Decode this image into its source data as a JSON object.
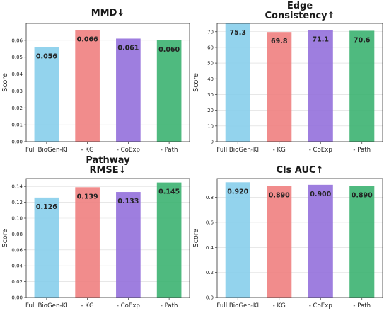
{
  "chart_data": [
    {
      "type": "bar",
      "title_lines": [
        "MMD↓"
      ],
      "ylabel": "Score",
      "categories": [
        "Full BioGen-KI",
        "- KG",
        "- CoExp",
        "- Path"
      ],
      "values": [
        0.056,
        0.066,
        0.061,
        0.06
      ],
      "value_labels": [
        "0.056",
        "0.066",
        "0.061",
        "0.060"
      ],
      "colors": [
        "#87ceeb",
        "#f08080",
        "#9370db",
        "#3cb371"
      ],
      "ylim": [
        0,
        0.07
      ],
      "yticks": [
        "0.00",
        "0.01",
        "0.02",
        "0.03",
        "0.04",
        "0.05",
        "0.06"
      ],
      "ytick_values": [
        0,
        0.01,
        0.02,
        0.03,
        0.04,
        0.05,
        0.06
      ],
      "grid": true
    },
    {
      "type": "bar",
      "title_lines": [
        "Edge",
        "Consistency↑"
      ],
      "ylabel": "Score",
      "categories": [
        "Full BioGen-KI",
        "- KG",
        "- CoExp",
        "- Path"
      ],
      "values": [
        75.3,
        69.8,
        71.1,
        70.6
      ],
      "value_labels": [
        "75.3",
        "69.8",
        "71.1",
        "70.6"
      ],
      "colors": [
        "#87ceeb",
        "#f08080",
        "#9370db",
        "#3cb371"
      ],
      "ylim": [
        0,
        75.3
      ],
      "yticks": [
        "0",
        "10",
        "20",
        "30",
        "40",
        "50",
        "60",
        "70"
      ],
      "ytick_values": [
        0,
        10,
        20,
        30,
        40,
        50,
        60,
        70
      ],
      "grid": true
    },
    {
      "type": "bar",
      "title_lines": [
        "Pathway",
        "RMSE↓"
      ],
      "ylabel": "Score",
      "categories": [
        "Full BioGen-KI",
        "- KG",
        "- CoExp",
        "- Path"
      ],
      "values": [
        0.126,
        0.139,
        0.133,
        0.145
      ],
      "value_labels": [
        "0.126",
        "0.139",
        "0.133",
        "0.145"
      ],
      "colors": [
        "#87ceeb",
        "#f08080",
        "#9370db",
        "#3cb371"
      ],
      "ylim": [
        0,
        0.15
      ],
      "yticks": [
        "0.00",
        "0.02",
        "0.04",
        "0.06",
        "0.08",
        "0.10",
        "0.12",
        "0.14"
      ],
      "ytick_values": [
        0,
        0.02,
        0.04,
        0.06,
        0.08,
        0.1,
        0.12,
        0.14
      ],
      "grid": true
    },
    {
      "type": "bar",
      "title_lines": [
        "Cls AUC↑"
      ],
      "ylabel": "Score",
      "categories": [
        "Full BioGen-KI",
        "- KG",
        "- CoExp",
        "- Path"
      ],
      "values": [
        0.92,
        0.89,
        0.9,
        0.89
      ],
      "value_labels": [
        "0.920",
        "0.890",
        "0.900",
        "0.890"
      ],
      "colors": [
        "#87ceeb",
        "#f08080",
        "#9370db",
        "#3cb371"
      ],
      "ylim": [
        0,
        0.95
      ],
      "yticks": [
        "0.0",
        "0.2",
        "0.4",
        "0.6",
        "0.8"
      ],
      "ytick_values": [
        0,
        0.2,
        0.4,
        0.6,
        0.8
      ],
      "grid": true
    }
  ]
}
